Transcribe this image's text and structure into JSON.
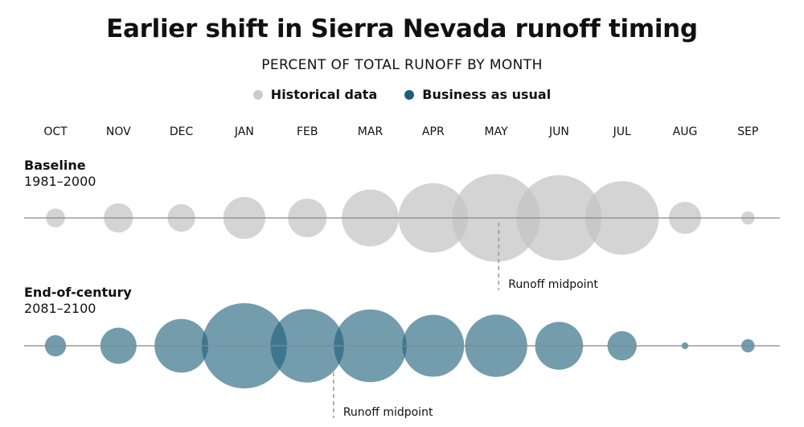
{
  "chart_data": {
    "type": "bubble",
    "title": "Earlier shift in Sierra Nevada runoff timing",
    "subtitle": "PERCENT OF TOTAL RUNOFF BY MONTH",
    "legend": [
      {
        "label": "Historical data",
        "color": "#cccccc"
      },
      {
        "label": "Business as usual",
        "color": "#1d5f7a"
      }
    ],
    "categories": [
      "OCT",
      "NOV",
      "DEC",
      "JAN",
      "FEB",
      "MAR",
      "APR",
      "MAY",
      "JUN",
      "JUL",
      "AUG",
      "SEP"
    ],
    "series": [
      {
        "name": "Baseline",
        "period": "1981–2000",
        "values": [
          0.8,
          1.9,
          1.7,
          3.9,
          3.3,
          7.2,
          10.7,
          17.1,
          16.2,
          12.0,
          2.3,
          0.4
        ],
        "midpoint_label": "Runoff midpoint"
      },
      {
        "name": "End-of-century",
        "period": "2081–2100",
        "values": [
          1.0,
          2.9,
          6.4,
          16.1,
          12.0,
          11.8,
          8.5,
          8.6,
          5.1,
          1.9,
          0.1,
          0.4
        ],
        "midpoint_label": "Runoff midpoint"
      }
    ],
    "gridlines": false
  }
}
